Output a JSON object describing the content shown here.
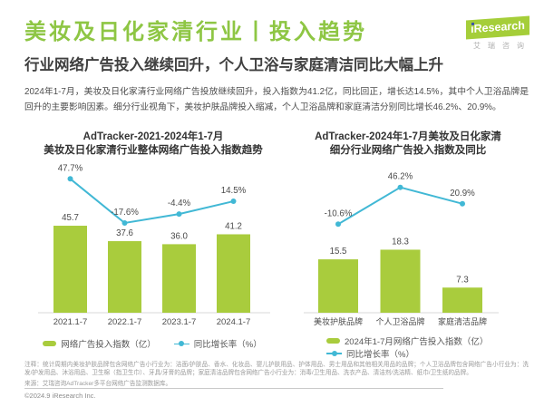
{
  "header": {
    "title": "美妆及日化家清行业丨投入趋势",
    "subtitle": "行业网络广告投入继续回升，个人卫浴与家庭清洁同比大幅上升",
    "paragraph": "2024年1-7月，美妆及日化家清行业网络广告投放继续回升，投入指数为41.2亿，同比回正，增长达14.5%，其中个人卫浴品牌是回升的主要影响因素。细分行业视角下，美妆护肤品牌投入缩减，个人卫浴品牌和家庭清洁分别同比增长46.2%、20.9%。"
  },
  "logo": {
    "i": "i",
    "brand": "Research",
    "cn": "艾瑞咨询"
  },
  "colors": {
    "title_green": "#8ec644",
    "bar_green": "#a9cc3d",
    "line_cyan": "#41b8d5",
    "label_gray": "#4a4a4a",
    "axis_gray": "#d9d9d9"
  },
  "chart_data": [
    {
      "type": "bar+line",
      "title_lines": [
        "AdTracker-2021-2024年1-7月",
        "美妆及日化家清行业整体网络广告投入指数趋势"
      ],
      "categories": [
        "2021.1-7",
        "2022.1-7",
        "2023.1-7",
        "2024.1-7"
      ],
      "series": [
        {
          "name": "网络广告投入指数（亿）",
          "type": "bar",
          "values": [
            45.7,
            37.6,
            36.0,
            41.2
          ],
          "labels": [
            "45.7",
            "37.6",
            "36.0",
            "41.2"
          ]
        },
        {
          "name": "同比增长率（%）",
          "type": "line",
          "values": [
            47.7,
            -17.6,
            -4.4,
            14.5
          ],
          "labels": [
            "47.7%",
            "-17.6%",
            "-4.4%",
            "14.5%"
          ]
        }
      ]
    },
    {
      "type": "bar+line",
      "title_lines": [
        "AdTracker-2024年1-7月美妆及日化家清",
        "细分行业网络广告投入指数及同比"
      ],
      "categories": [
        "美妆护肤品牌",
        "个人卫浴品牌",
        "家庭清洁品牌"
      ],
      "series": [
        {
          "name": "2024年1-7月网络广告投入指数（亿）",
          "type": "bar",
          "values": [
            15.5,
            18.3,
            7.3
          ],
          "labels": [
            "15.5",
            "18.3",
            "7.3"
          ]
        },
        {
          "name": "同比增长率（%）",
          "type": "line",
          "values": [
            -10.6,
            46.2,
            20.9
          ],
          "labels": [
            "-10.6%",
            "46.2%",
            "20.9%"
          ]
        }
      ]
    }
  ],
  "footnote": {
    "note": "注释：统计周期内美妆护肤品牌包含网络广告小行业为：洁面/护肤品、香水、化妆品、婴儿护肤用品、护体用品、男士用品和其他相关用品的品牌；个人卫浴品牌包含网络广告小行业为：洗发/护发用品、沐浴用品、卫生棉（指卫生巾）、牙具/牙膏的品牌；家庭清洁品牌包含网络广告小行业为：消毒/卫生用品、洗衣产品、清洁剂/洗洁精、纸巾/卫生纸的品牌。",
    "source": "来源：艾瑞咨询AdTracker多平台网络广告监测数据库。",
    "copyright": "©2024.9 iResearch Inc."
  }
}
